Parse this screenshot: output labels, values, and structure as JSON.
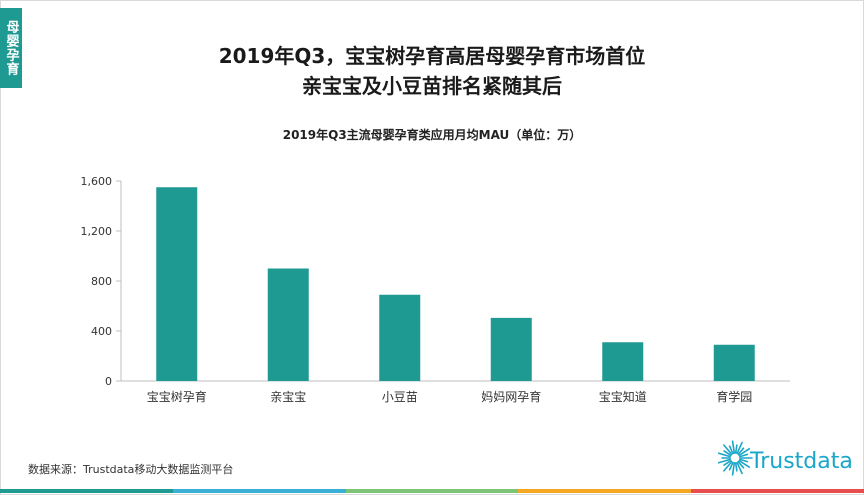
{
  "side_tag": "母婴孕育",
  "title_line1": "2019年Q3，宝宝树孕育高居母婴孕育市场首位",
  "title_line2": "亲宝宝及小豆苗排名紧随其后",
  "source": "数据来源：Trustdata移动大数据监测平台",
  "logo_text": "Trustdata",
  "colors": {
    "bar": "#1f9a93",
    "accent": "#1f9a93",
    "logo": "#1aa6c8",
    "bottom_bar": [
      "#1f9a93",
      "#3ab0d6",
      "#7cc576",
      "#f5a623",
      "#e94e4e"
    ]
  },
  "chart_data": {
    "type": "bar",
    "title": "2019年Q3主流母婴孕育类应用月均MAU（单位：万）",
    "xlabel": "",
    "ylabel": "",
    "categories": [
      "宝宝树孕育",
      "亲宝宝",
      "小豆苗",
      "妈妈网孕育",
      "宝宝知道",
      "育学园"
    ],
    "values": [
      1550,
      900,
      690,
      505,
      310,
      290
    ],
    "ylim": [
      0,
      1600
    ],
    "yticks": [
      0,
      400,
      800,
      1200,
      1600
    ],
    "ytick_labels": [
      "0",
      "400",
      "800",
      "1,200",
      "1,600"
    ],
    "grid": false,
    "legend": "none"
  }
}
